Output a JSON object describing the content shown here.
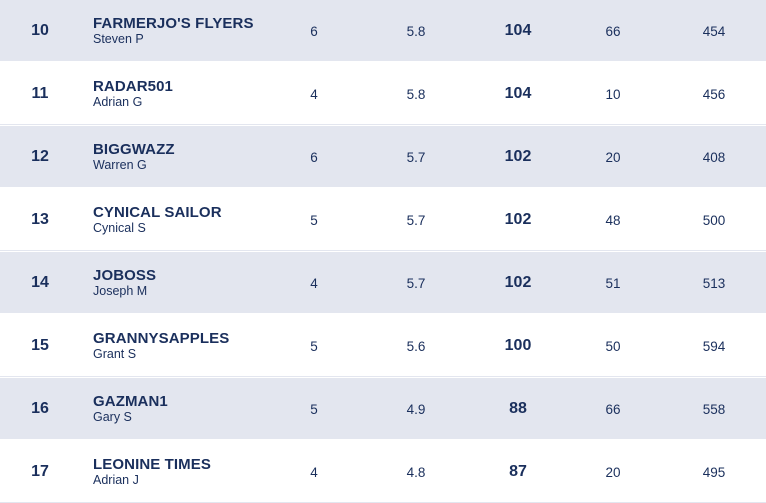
{
  "rows": [
    {
      "rank": "10",
      "team": "FARMERJO'S FLYERS",
      "manager": "Steven P",
      "col1": "6",
      "col2": "5.8",
      "col3": "104",
      "col4": "66",
      "col5": "454"
    },
    {
      "rank": "11",
      "team": "RADAR501",
      "manager": "Adrian G",
      "col1": "4",
      "col2": "5.8",
      "col3": "104",
      "col4": "10",
      "col5": "456"
    },
    {
      "rank": "12",
      "team": "BIGGWAZZ",
      "manager": "Warren G",
      "col1": "6",
      "col2": "5.7",
      "col3": "102",
      "col4": "20",
      "col5": "408"
    },
    {
      "rank": "13",
      "team": "CYNICAL SAILOR",
      "manager": "Cynical S",
      "col1": "5",
      "col2": "5.7",
      "col3": "102",
      "col4": "48",
      "col5": "500"
    },
    {
      "rank": "14",
      "team": "JOBOSS",
      "manager": "Joseph M",
      "col1": "4",
      "col2": "5.7",
      "col3": "102",
      "col4": "51",
      "col5": "513"
    },
    {
      "rank": "15",
      "team": "GRANNYSAPPLES",
      "manager": "Grant S",
      "col1": "5",
      "col2": "5.6",
      "col3": "100",
      "col4": "50",
      "col5": "594"
    },
    {
      "rank": "16",
      "team": "GAZMAN1",
      "manager": "Gary S",
      "col1": "5",
      "col2": "4.9",
      "col3": "88",
      "col4": "66",
      "col5": "558"
    },
    {
      "rank": "17",
      "team": "LEONINE TIMES",
      "manager": "Adrian J",
      "col1": "4",
      "col2": "4.8",
      "col3": "87",
      "col4": "20",
      "col5": "495"
    }
  ],
  "colors": {
    "text": "#1a2f5c",
    "shaded_row": "#e3e6ef",
    "plain_row": "#ffffff"
  }
}
